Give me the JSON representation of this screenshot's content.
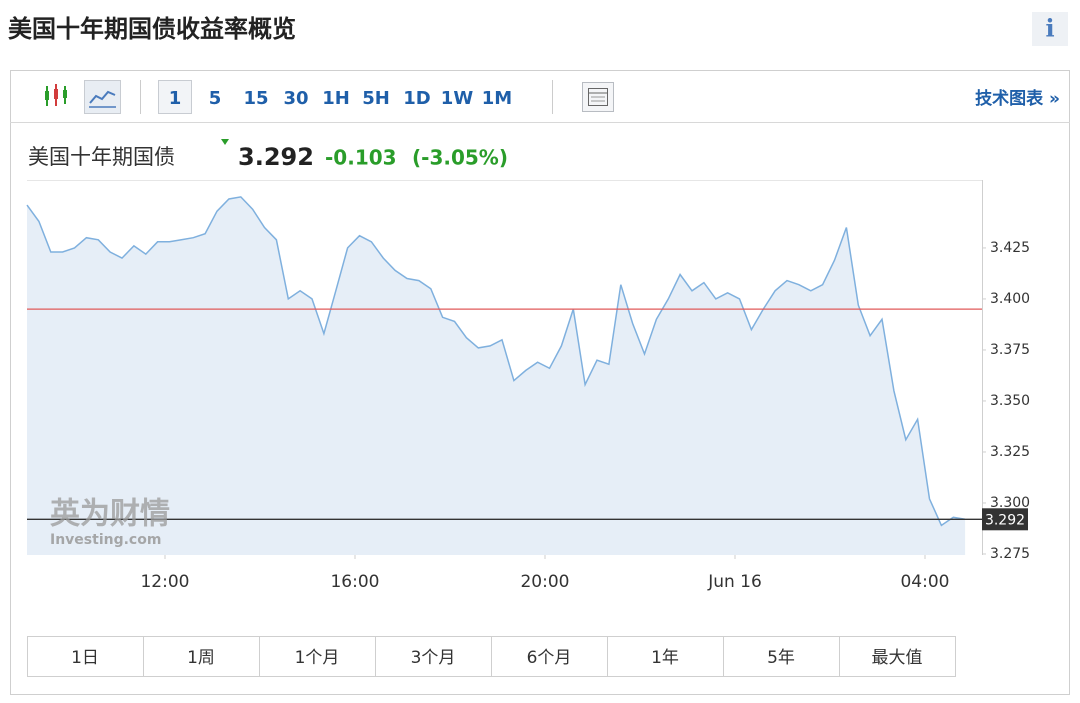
{
  "header": {
    "title": "美国十年期国债收益率概览",
    "info_icon": "i"
  },
  "toolbar": {
    "intervals": [
      "1",
      "5",
      "15",
      "30",
      "1H",
      "5H",
      "1D",
      "1W",
      "1M"
    ],
    "link": "技术图表 »"
  },
  "quote": {
    "name": "美国十年期国债",
    "price": "3.292",
    "change": "-0.103",
    "change_percent": "(-3.05%)"
  },
  "watermark": {
    "brand": "英为财情",
    "site": "Investing.com"
  },
  "chart_data": {
    "type": "area",
    "color": "#7fb0de",
    "fill_color": "#e6eef7",
    "values": [
      3.446,
      3.438,
      3.423,
      3.423,
      3.425,
      3.43,
      3.429,
      3.423,
      3.42,
      3.426,
      3.422,
      3.428,
      3.428,
      3.429,
      3.43,
      3.432,
      3.443,
      3.449,
      3.45,
      3.444,
      3.435,
      3.429,
      3.4,
      3.404,
      3.4,
      3.383,
      3.404,
      3.425,
      3.431,
      3.428,
      3.42,
      3.414,
      3.41,
      3.409,
      3.405,
      3.391,
      3.389,
      3.381,
      3.376,
      3.377,
      3.38,
      3.36,
      3.365,
      3.369,
      3.366,
      3.377,
      3.395,
      3.358,
      3.37,
      3.368,
      3.407,
      3.388,
      3.373,
      3.39,
      3.4,
      3.412,
      3.404,
      3.408,
      3.4,
      3.403,
      3.4,
      3.385,
      3.395,
      3.404,
      3.409,
      3.407,
      3.404,
      3.407,
      3.419,
      3.435,
      3.397,
      3.382,
      3.39,
      3.355,
      3.331,
      3.341,
      3.302,
      3.289,
      3.293,
      3.292
    ],
    "xlim": [
      0,
      80.42
    ],
    "xticks": [
      {
        "value": 11.62,
        "label": "12:00"
      },
      {
        "value": 27.62,
        "label": "16:00"
      },
      {
        "value": 43.62,
        "label": "20:00"
      },
      {
        "value": 59.62,
        "label": "Jun 16"
      },
      {
        "value": 75.62,
        "label": "04:00"
      }
    ],
    "ylim": [
      3.2745,
      3.4583
    ],
    "yticks": [
      3.275,
      {
        "value": 3.3,
        "label": "3.300"
      },
      3.325,
      {
        "value": 3.35,
        "label": "3.350"
      },
      3.375,
      {
        "value": 3.4,
        "label": "3.400"
      },
      3.425
    ],
    "reference_lines": [
      {
        "value": 3.395,
        "color": "#e05a5a"
      },
      {
        "value": 3.292,
        "color": "#333333"
      }
    ]
  },
  "ranges": [
    "1日",
    "1周",
    "1个月",
    "3个月",
    "6个月",
    "1年",
    "5年",
    "最大值"
  ]
}
